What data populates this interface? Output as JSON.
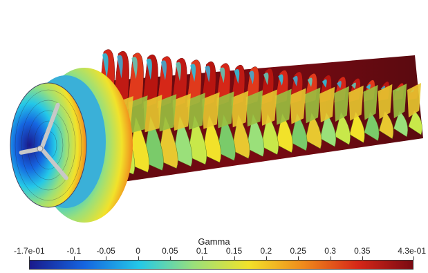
{
  "visualization": {
    "scalar_field": "Gamma",
    "colormap": [
      "#1a1a8c",
      "#1565e0",
      "#24c8e8",
      "#9ae07a",
      "#f2e22a",
      "#f08a1c",
      "#d62718",
      "#7a0a12"
    ],
    "background": "#ffffff"
  },
  "colorbar": {
    "title": "Gamma",
    "min": -0.17,
    "max": 0.43,
    "ticks": [
      {
        "value": -0.17,
        "label": "-1.7e-01"
      },
      {
        "value": -0.1,
        "label": "-0.1"
      },
      {
        "value": -0.05,
        "label": "-0.05"
      },
      {
        "value": 0,
        "label": "0"
      },
      {
        "value": 0.05,
        "label": "0.05"
      },
      {
        "value": 0.1,
        "label": "0.1"
      },
      {
        "value": 0.15,
        "label": "0.15"
      },
      {
        "value": 0.2,
        "label": "0.2"
      },
      {
        "value": 0.25,
        "label": "0.25"
      },
      {
        "value": 0.3,
        "label": "0.3"
      },
      {
        "value": 0.35,
        "label": "0.35"
      },
      {
        "value": 0.43,
        "label": "4.3e-01"
      }
    ]
  }
}
